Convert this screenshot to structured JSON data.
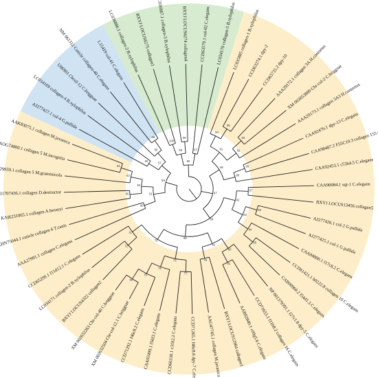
{
  "colors": {
    "blue_clade": "#cfe3f3",
    "green_clade": "#d6ebcf",
    "orange_clade": "#fdeec9",
    "highlight_text": "#e8322a",
    "normal_text": "#111111"
  },
  "leaves": [
    {
      "label": "LC036886.1 collagen-2 B.xylophilus",
      "color": "#111111"
    },
    {
      "label": "BXYJ LOCUS6275 collagen1",
      "color": "#e8322a"
    },
    {
      "label": "LC036887.1 collagen-3 B.xylophilus",
      "color": "#111111"
    },
    {
      "label": "BXYJ LOCUS6274 collagen4",
      "color": "#e8322a"
    },
    {
      "label": "CCD63579.1 col-82 C.elegans",
      "color": "#111111"
    },
    {
      "label": "LC034170 collagen-5 B.xylophilus",
      "color": "#111111"
    },
    {
      "label": "LC035885 collagen-1 B.xylophilus",
      "color": "#111111"
    },
    {
      "label": "CCD63274.1 dpy-2",
      "color": "#111111"
    },
    {
      "label": "CCD65735.2 dpy-10",
      "color": "#111111"
    },
    {
      "label": "AAA29172.1 collagen 3A H.contortus",
      "color": "#111111"
    },
    {
      "label": "XM 003653889 Cbr-col-2 C.briggsae",
      "color": "#111111"
    },
    {
      "label": "AAA29173.1 collagen 3A3 H.contortus",
      "color": "#111111"
    },
    {
      "label": "CAA92476.1 dpy-13 C.elegans",
      "color": "#111111"
    },
    {
      "label": "CAA98487.2 F55C10.3 collagen 155 C.elegans",
      "color": "#111111"
    },
    {
      "label": "CAA92453.1 c53h4.5 C.elegans",
      "color": "#111111"
    },
    {
      "label": "CAA90084.1 sqt-1 C.elegans",
      "color": "#111111"
    },
    {
      "label": "BXYJ LOCUS13456 collagen5",
      "color": "#e8322a"
    },
    {
      "label": "AJ277426.1 col-2 G.pallida",
      "color": "#111111"
    },
    {
      "label": "AJ277425.1 col-1 G.pallida",
      "color": "#111111"
    },
    {
      "label": "CAA84800.1 f17c8.2 C.elegans",
      "color": "#111111"
    },
    {
      "label": "CCD61421.1 b0222.8 collagen 10 C.elegans",
      "color": "#111111"
    },
    {
      "label": "CAB00960.2 f54d1.3 C.elegans",
      "color": "#111111"
    },
    {
      "label": "NP 001379391.1 f27c1.8 dpy-5 C.elegans",
      "color": "#111111"
    },
    {
      "label": "CCD71653.1 f11h8.2 collagen 16 C.elegans",
      "color": "#111111"
    },
    {
      "label": "AAB92849.1 c09g5.6 C.elegans",
      "color": "#111111"
    },
    {
      "label": "BXYJ LOCUS12964 collagen1",
      "color": "#e8322a"
    },
    {
      "label": "AAG47745.1 collagen M.javanica",
      "color": "#111111"
    },
    {
      "label": "CCD71265.1 f46c8.6 dpy-7 C.elegans",
      "color": "#111111"
    },
    {
      "label": "CCD66330.1 c31h2.2 C.elegans",
      "color": "#111111"
    },
    {
      "label": "CAA93499.1 f56f3.1 C.elegans",
      "color": "#111111"
    },
    {
      "label": "CCD71292.1 f46c8.2 C.elegans",
      "color": "#111111"
    },
    {
      "label": "XM 002632504 Cbr-col-12.1 C.briggsae",
      "color": "#111111"
    },
    {
      "label": "XM 002632263 Cbr-col-40 C.briggsae",
      "color": "#111111"
    },
    {
      "label": "BXYJ LOCUS4322 collagen2",
      "color": "#e8322a"
    },
    {
      "label": "LC034171 collagen-2 B.xylophilus",
      "color": "#111111"
    },
    {
      "label": "CCD65299.1 f11d12.1 C.elegans",
      "color": "#111111"
    },
    {
      "label": "AAA27991.1 collagen C.elegans",
      "color": "#111111"
    },
    {
      "label": "KHN75644.1 cuticle collagen 6 T.canis",
      "color": "#111111"
    },
    {
      "label": "KAI6231065.1 collagen A.besseyi",
      "color": "#111111"
    },
    {
      "label": "KAI1707436.1 collagen D.destructor",
      "color": "#111111"
    },
    {
      "label": "KAF7629959.1 collagen 5 M.graminicola",
      "color": "#111111"
    },
    {
      "label": "AOG74800.1 collagen 5 M.incognita",
      "color": "#111111"
    },
    {
      "label": "AAK83075.1 collagen M.javanica",
      "color": "#111111"
    },
    {
      "label": "AJ277427.1 col-4 G.pallida",
      "color": "#111111"
    },
    {
      "label": "LC034169 collagen-4 B.xylophilus",
      "color": "#111111"
    },
    {
      "label": "U86901 Cbcol-12 C.briggsae",
      "color": "#111111"
    },
    {
      "label": "NM 061312 Cuticle collagen-40 C.elegans",
      "color": "#111111"
    },
    {
      "label": "L15419 col-41 C.elegans",
      "color": "#111111"
    }
  ],
  "bootstrap": [
    "100",
    "99",
    "98",
    "97",
    "96",
    "95",
    "94",
    "93",
    "92",
    "91",
    "90",
    "89",
    "88",
    "87",
    "86",
    "85",
    "84",
    "83",
    "82",
    "81",
    "80",
    "79",
    "78",
    "77",
    "76",
    "75",
    "74",
    "73",
    "72",
    "71",
    "70",
    "69",
    "68",
    "67",
    "66",
    "65",
    "64",
    "63",
    "62",
    "61",
    "60",
    "59",
    "58",
    "57",
    "56",
    "55",
    "54",
    "53"
  ]
}
